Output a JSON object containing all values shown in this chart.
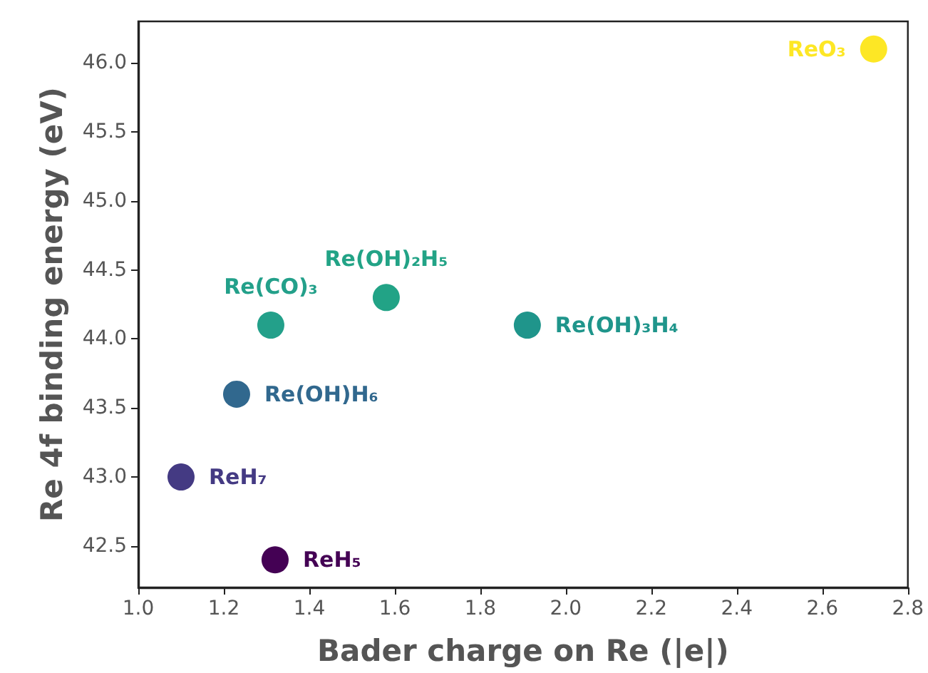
{
  "chart_data": {
    "type": "scatter",
    "xlabel": "Bader charge on Re (|e|)",
    "ylabel": "Re 4f binding energy (eV)",
    "series": [
      {
        "name": "ReO₃",
        "color": "#fde725",
        "x": [
          2.72
        ],
        "values": [
          46.1
        ]
      },
      {
        "name": "Re(CO)₃",
        "color": "#23a08a",
        "x": [
          1.31
        ],
        "values": [
          44.1
        ]
      },
      {
        "name": "Re(OH)₂H₅",
        "color": "#22a386",
        "x": [
          1.58
        ],
        "values": [
          44.3
        ]
      },
      {
        "name": "Re(OH)₃H₄",
        "color": "#1f958b",
        "x": [
          1.91
        ],
        "values": [
          44.1
        ]
      },
      {
        "name": "Re(OH)H₆",
        "color": "#31688e",
        "x": [
          1.23
        ],
        "values": [
          43.6
        ]
      },
      {
        "name": "ReH₇",
        "color": "#443a83",
        "x": [
          1.1
        ],
        "values": [
          43.0
        ]
      },
      {
        "name": "ReH₅",
        "color": "#440154",
        "x": [
          1.32
        ],
        "values": [
          42.4
        ]
      }
    ],
    "xlim": [
      1.0,
      2.8
    ],
    "ylim": [
      42.2,
      46.3
    ],
    "xticks": [
      {
        "value": 1,
        "label": "1.0"
      },
      1.2,
      1.4,
      1.6,
      1.8,
      {
        "value": 2,
        "label": "2.0"
      },
      2.2,
      2.4,
      2.6,
      2.8
    ],
    "yticks": [
      42.5,
      {
        "value": 43,
        "label": "43.0"
      },
      43.5,
      {
        "value": 44,
        "label": "44.0"
      },
      44.5,
      {
        "value": 45,
        "label": "45.0"
      },
      45.5,
      {
        "value": 46,
        "label": "46.0"
      }
    ],
    "grid": false,
    "legend": false,
    "marker": "circle"
  }
}
